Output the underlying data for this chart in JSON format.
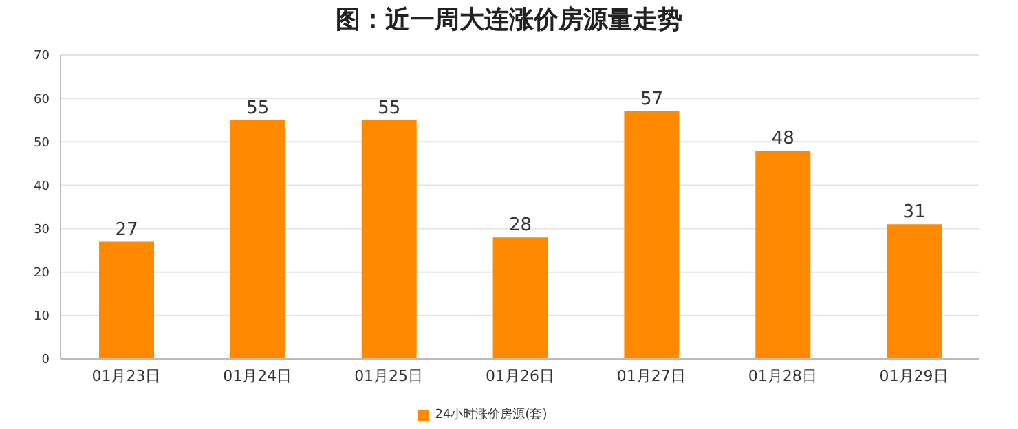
{
  "chart_data": {
    "type": "bar",
    "title": "图：近一周大连涨价房源量走势",
    "categories": [
      "01月23日",
      "01月24日",
      "01月25日",
      "01月26日",
      "01月27日",
      "01月28日",
      "01月29日"
    ],
    "series": [
      {
        "name": "24小时涨价房源(套)",
        "color": "#ff8a00",
        "values": [
          27,
          55,
          55,
          28,
          57,
          48,
          31
        ]
      }
    ],
    "ylim": [
      0,
      70
    ],
    "yticks": [
      0,
      10,
      20,
      30,
      40,
      50,
      60,
      70
    ],
    "grid": "y",
    "legend": "bottom",
    "data_labels": true
  }
}
